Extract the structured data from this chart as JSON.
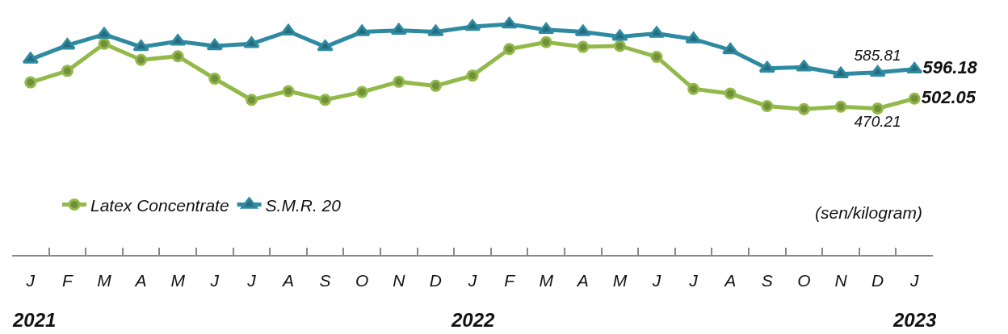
{
  "chart_data": {
    "type": "line",
    "categories": [
      "J",
      "F",
      "M",
      "A",
      "M",
      "J",
      "J",
      "A",
      "S",
      "O",
      "N",
      "D",
      "J",
      "F",
      "M",
      "A",
      "M",
      "J",
      "J",
      "A",
      "S",
      "O",
      "N",
      "D",
      "J"
    ],
    "series": [
      {
        "name": "Latex Concentrate",
        "color": "#92b94a",
        "marker": "circle",
        "values": [
          554,
          591,
          678,
          626,
          638,
          566,
          498,
          526,
          498,
          523,
          556,
          543,
          576,
          661,
          683,
          668,
          671,
          636,
          533,
          518,
          478,
          468,
          476,
          470.21,
          502.05
        ],
        "value_labels": [
          null,
          null,
          null,
          null,
          null,
          null,
          null,
          null,
          null,
          null,
          null,
          null,
          null,
          null,
          null,
          null,
          null,
          null,
          null,
          null,
          null,
          null,
          null,
          "470.21",
          "502.05"
        ]
      },
      {
        "name": "S.M.R. 20",
        "color": "#2e8aa0",
        "marker": "triangle",
        "values": [
          628,
          673,
          708,
          668,
          686,
          671,
          678,
          718,
          668,
          716,
          721,
          716,
          733,
          741,
          723,
          716,
          701,
          711,
          693,
          658,
          599,
          603,
          581,
          585.81,
          596.18
        ],
        "value_labels": [
          null,
          null,
          null,
          null,
          null,
          null,
          null,
          null,
          null,
          null,
          null,
          null,
          null,
          null,
          null,
          null,
          null,
          null,
          null,
          null,
          null,
          null,
          null,
          "585.81",
          "596.18"
        ]
      }
    ],
    "tick_labels": "x",
    "grid": false,
    "legend": "bottom left",
    "line_style": "solid",
    "annotations": [
      "(sen/kilogram)",
      "2021",
      "2022",
      "2023"
    ]
  }
}
